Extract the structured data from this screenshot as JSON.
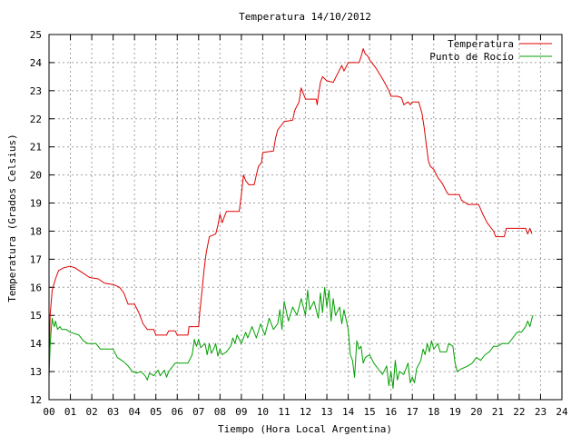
{
  "chart_data": {
    "type": "line",
    "title": "Temperatura 14/10/2012",
    "xlabel": "Tiempo (Hora Local Argentina)",
    "ylabel": "Temperatura (Grados Celsius)",
    "xlim": [
      0,
      24
    ],
    "ylim": [
      12,
      25
    ],
    "x_ticks": [
      {
        "v": 0,
        "label": "00"
      },
      {
        "v": 1,
        "label": "01"
      },
      {
        "v": 2,
        "label": "02"
      },
      {
        "v": 3,
        "label": "03"
      },
      {
        "v": 4,
        "label": "04"
      },
      {
        "v": 5,
        "label": "05"
      },
      {
        "v": 6,
        "label": "06"
      },
      {
        "v": 7,
        "label": "07"
      },
      {
        "v": 8,
        "label": "08"
      },
      {
        "v": 9,
        "label": "09"
      },
      {
        "v": 10,
        "label": "10"
      },
      {
        "v": 11,
        "label": "11"
      },
      {
        "v": 12,
        "label": "12"
      },
      {
        "v": 13,
        "label": "13"
      },
      {
        "v": 14,
        "label": "14"
      },
      {
        "v": 15,
        "label": "15"
      },
      {
        "v": 16,
        "label": "16"
      },
      {
        "v": 17,
        "label": "17"
      },
      {
        "v": 18,
        "label": "18"
      },
      {
        "v": 19,
        "label": "19"
      },
      {
        "v": 20,
        "label": "20"
      },
      {
        "v": 21,
        "label": "21"
      },
      {
        "v": 22,
        "label": "22"
      },
      {
        "v": 23,
        "label": "23"
      },
      {
        "v": 24,
        "label": "24"
      }
    ],
    "y_ticks": [
      {
        "v": 12,
        "label": "12"
      },
      {
        "v": 13,
        "label": "13"
      },
      {
        "v": 14,
        "label": "14"
      },
      {
        "v": 15,
        "label": "15"
      },
      {
        "v": 16,
        "label": "16"
      },
      {
        "v": 17,
        "label": "17"
      },
      {
        "v": 18,
        "label": "18"
      },
      {
        "v": 19,
        "label": "19"
      },
      {
        "v": 20,
        "label": "20"
      },
      {
        "v": 21,
        "label": "21"
      },
      {
        "v": 22,
        "label": "22"
      },
      {
        "v": 23,
        "label": "23"
      },
      {
        "v": 24,
        "label": "24"
      },
      {
        "v": 25,
        "label": "25"
      }
    ],
    "grid": true,
    "legend_position": "top-right",
    "series": [
      {
        "name": "Temperatura",
        "color": "#e00000",
        "points": [
          [
            0.0,
            13.2
          ],
          [
            0.05,
            15.0
          ],
          [
            0.15,
            15.9
          ],
          [
            0.3,
            16.3
          ],
          [
            0.45,
            16.6
          ],
          [
            0.7,
            16.7
          ],
          [
            1.0,
            16.75
          ],
          [
            1.2,
            16.7
          ],
          [
            1.4,
            16.6
          ],
          [
            1.6,
            16.5
          ],
          [
            1.9,
            16.35
          ],
          [
            2.3,
            16.3
          ],
          [
            2.6,
            16.15
          ],
          [
            3.0,
            16.1
          ],
          [
            3.3,
            16.0
          ],
          [
            3.5,
            15.8
          ],
          [
            3.7,
            15.4
          ],
          [
            4.0,
            15.4
          ],
          [
            4.2,
            15.1
          ],
          [
            4.4,
            14.7
          ],
          [
            4.6,
            14.5
          ],
          [
            4.9,
            14.5
          ],
          [
            5.0,
            14.3
          ],
          [
            5.5,
            14.3
          ],
          [
            5.6,
            14.45
          ],
          [
            5.9,
            14.45
          ],
          [
            6.0,
            14.3
          ],
          [
            6.5,
            14.3
          ],
          [
            6.55,
            14.6
          ],
          [
            7.0,
            14.6
          ],
          [
            7.05,
            15.1
          ],
          [
            7.15,
            15.8
          ],
          [
            7.25,
            16.6
          ],
          [
            7.35,
            17.2
          ],
          [
            7.5,
            17.8
          ],
          [
            7.8,
            17.9
          ],
          [
            7.9,
            18.2
          ],
          [
            8.0,
            18.6
          ],
          [
            8.1,
            18.3
          ],
          [
            8.2,
            18.5
          ],
          [
            8.3,
            18.7
          ],
          [
            8.9,
            18.7
          ],
          [
            9.0,
            19.3
          ],
          [
            9.1,
            20.0
          ],
          [
            9.2,
            19.8
          ],
          [
            9.35,
            19.65
          ],
          [
            9.6,
            19.65
          ],
          [
            9.7,
            20.0
          ],
          [
            9.8,
            20.3
          ],
          [
            9.95,
            20.45
          ],
          [
            10.0,
            20.8
          ],
          [
            10.5,
            20.85
          ],
          [
            10.6,
            21.3
          ],
          [
            10.7,
            21.6
          ],
          [
            10.8,
            21.7
          ],
          [
            11.0,
            21.9
          ],
          [
            11.4,
            21.95
          ],
          [
            11.5,
            22.3
          ],
          [
            11.7,
            22.6
          ],
          [
            11.8,
            23.1
          ],
          [
            11.9,
            22.9
          ],
          [
            12.0,
            22.7
          ],
          [
            12.5,
            22.7
          ],
          [
            12.55,
            22.5
          ],
          [
            12.6,
            22.8
          ],
          [
            12.7,
            23.3
          ],
          [
            12.8,
            23.5
          ],
          [
            13.0,
            23.35
          ],
          [
            13.3,
            23.3
          ],
          [
            13.5,
            23.6
          ],
          [
            13.7,
            23.9
          ],
          [
            13.8,
            23.7
          ],
          [
            14.0,
            24.0
          ],
          [
            14.5,
            24.0
          ],
          [
            14.6,
            24.2
          ],
          [
            14.7,
            24.5
          ],
          [
            14.8,
            24.3
          ],
          [
            14.9,
            24.25
          ],
          [
            15.0,
            24.1
          ],
          [
            15.3,
            23.8
          ],
          [
            15.5,
            23.55
          ],
          [
            15.7,
            23.3
          ],
          [
            15.9,
            23.0
          ],
          [
            16.0,
            22.8
          ],
          [
            16.3,
            22.8
          ],
          [
            16.5,
            22.75
          ],
          [
            16.6,
            22.5
          ],
          [
            16.8,
            22.6
          ],
          [
            16.9,
            22.5
          ],
          [
            17.0,
            22.6
          ],
          [
            17.3,
            22.6
          ],
          [
            17.45,
            22.2
          ],
          [
            17.55,
            21.7
          ],
          [
            17.65,
            21.1
          ],
          [
            17.75,
            20.5
          ],
          [
            17.85,
            20.3
          ],
          [
            18.0,
            20.2
          ],
          [
            18.2,
            19.9
          ],
          [
            18.4,
            19.7
          ],
          [
            18.6,
            19.4
          ],
          [
            18.7,
            19.3
          ],
          [
            19.2,
            19.3
          ],
          [
            19.3,
            19.1
          ],
          [
            19.5,
            19.0
          ],
          [
            19.6,
            18.95
          ],
          [
            20.1,
            18.95
          ],
          [
            20.3,
            18.6
          ],
          [
            20.5,
            18.3
          ],
          [
            20.8,
            18.0
          ],
          [
            20.9,
            17.8
          ],
          [
            21.3,
            17.8
          ],
          [
            21.4,
            18.1
          ],
          [
            22.3,
            18.1
          ],
          [
            22.4,
            17.9
          ],
          [
            22.5,
            18.1
          ],
          [
            22.6,
            17.9
          ]
        ]
      },
      {
        "name": "Punto de Rocío",
        "color": "#00a000",
        "points": [
          [
            0.0,
            12.8
          ],
          [
            0.05,
            13.9
          ],
          [
            0.1,
            14.5
          ],
          [
            0.15,
            14.9
          ],
          [
            0.2,
            14.7
          ],
          [
            0.25,
            14.6
          ],
          [
            0.3,
            14.8
          ],
          [
            0.4,
            14.5
          ],
          [
            0.5,
            14.6
          ],
          [
            0.6,
            14.5
          ],
          [
            0.8,
            14.5
          ],
          [
            1.0,
            14.4
          ],
          [
            1.4,
            14.3
          ],
          [
            1.6,
            14.1
          ],
          [
            1.8,
            14.0
          ],
          [
            2.2,
            14.0
          ],
          [
            2.4,
            13.8
          ],
          [
            3.0,
            13.8
          ],
          [
            3.2,
            13.5
          ],
          [
            3.5,
            13.35
          ],
          [
            3.7,
            13.2
          ],
          [
            3.9,
            13.0
          ],
          [
            4.1,
            12.95
          ],
          [
            4.3,
            13.0
          ],
          [
            4.5,
            12.85
          ],
          [
            4.6,
            12.7
          ],
          [
            4.7,
            12.95
          ],
          [
            4.9,
            12.85
          ],
          [
            5.1,
            13.05
          ],
          [
            5.2,
            12.85
          ],
          [
            5.4,
            13.05
          ],
          [
            5.5,
            12.8
          ],
          [
            5.6,
            13.0
          ],
          [
            5.9,
            13.3
          ],
          [
            6.2,
            13.3
          ],
          [
            6.5,
            13.3
          ],
          [
            6.7,
            13.6
          ],
          [
            6.8,
            14.15
          ],
          [
            6.9,
            13.9
          ],
          [
            7.0,
            14.15
          ],
          [
            7.1,
            13.85
          ],
          [
            7.3,
            14.0
          ],
          [
            7.4,
            13.6
          ],
          [
            7.5,
            14.0
          ],
          [
            7.6,
            13.65
          ],
          [
            7.7,
            13.8
          ],
          [
            7.8,
            14.0
          ],
          [
            7.9,
            13.55
          ],
          [
            8.0,
            13.8
          ],
          [
            8.1,
            13.6
          ],
          [
            8.3,
            13.7
          ],
          [
            8.5,
            13.9
          ],
          [
            8.6,
            14.2
          ],
          [
            8.7,
            14.0
          ],
          [
            8.8,
            14.3
          ],
          [
            9.0,
            14.0
          ],
          [
            9.2,
            14.4
          ],
          [
            9.3,
            14.2
          ],
          [
            9.5,
            14.6
          ],
          [
            9.7,
            14.2
          ],
          [
            9.9,
            14.7
          ],
          [
            10.1,
            14.3
          ],
          [
            10.3,
            14.9
          ],
          [
            10.5,
            14.5
          ],
          [
            10.7,
            14.7
          ],
          [
            10.8,
            15.2
          ],
          [
            10.9,
            14.5
          ],
          [
            11.0,
            15.5
          ],
          [
            11.2,
            14.8
          ],
          [
            11.4,
            15.3
          ],
          [
            11.6,
            15.0
          ],
          [
            11.8,
            15.6
          ],
          [
            12.0,
            15.0
          ],
          [
            12.1,
            15.9
          ],
          [
            12.2,
            15.2
          ],
          [
            12.4,
            15.5
          ],
          [
            12.6,
            14.9
          ],
          [
            12.7,
            15.8
          ],
          [
            12.8,
            15.1
          ],
          [
            12.9,
            16.0
          ],
          [
            13.0,
            15.3
          ],
          [
            13.1,
            15.9
          ],
          [
            13.2,
            14.8
          ],
          [
            13.3,
            15.6
          ],
          [
            13.4,
            15.0
          ],
          [
            13.6,
            15.3
          ],
          [
            13.7,
            14.7
          ],
          [
            13.8,
            15.2
          ],
          [
            14.0,
            14.5
          ],
          [
            14.1,
            13.6
          ],
          [
            14.2,
            13.4
          ],
          [
            14.3,
            12.8
          ],
          [
            14.4,
            14.1
          ],
          [
            14.5,
            13.8
          ],
          [
            14.6,
            13.9
          ],
          [
            14.7,
            13.3
          ],
          [
            14.8,
            13.5
          ],
          [
            15.0,
            13.6
          ],
          [
            15.2,
            13.3
          ],
          [
            15.4,
            13.1
          ],
          [
            15.6,
            12.9
          ],
          [
            15.8,
            13.2
          ],
          [
            15.9,
            12.5
          ],
          [
            16.0,
            13.0
          ],
          [
            16.1,
            12.4
          ],
          [
            16.2,
            13.4
          ],
          [
            16.3,
            12.7
          ],
          [
            16.4,
            13.0
          ],
          [
            16.6,
            12.9
          ],
          [
            16.8,
            13.3
          ],
          [
            16.9,
            12.6
          ],
          [
            17.0,
            12.8
          ],
          [
            17.1,
            12.6
          ],
          [
            17.2,
            13.1
          ],
          [
            17.4,
            13.4
          ],
          [
            17.5,
            13.8
          ],
          [
            17.6,
            13.6
          ],
          [
            17.7,
            14.0
          ],
          [
            17.8,
            13.7
          ],
          [
            17.9,
            14.1
          ],
          [
            18.0,
            13.8
          ],
          [
            18.2,
            14.0
          ],
          [
            18.3,
            13.7
          ],
          [
            18.6,
            13.7
          ],
          [
            18.7,
            14.0
          ],
          [
            18.9,
            13.9
          ],
          [
            19.0,
            13.3
          ],
          [
            19.1,
            13.0
          ],
          [
            19.3,
            13.1
          ],
          [
            19.6,
            13.2
          ],
          [
            19.8,
            13.3
          ],
          [
            20.0,
            13.5
          ],
          [
            20.2,
            13.4
          ],
          [
            20.4,
            13.6
          ],
          [
            20.6,
            13.7
          ],
          [
            20.8,
            13.9
          ],
          [
            21.0,
            13.9
          ],
          [
            21.2,
            14.0
          ],
          [
            21.5,
            14.0
          ],
          [
            21.7,
            14.2
          ],
          [
            21.9,
            14.4
          ],
          [
            22.1,
            14.4
          ],
          [
            22.3,
            14.6
          ],
          [
            22.4,
            14.8
          ],
          [
            22.5,
            14.6
          ],
          [
            22.6,
            14.9
          ],
          [
            22.65,
            15.0
          ]
        ]
      }
    ]
  }
}
